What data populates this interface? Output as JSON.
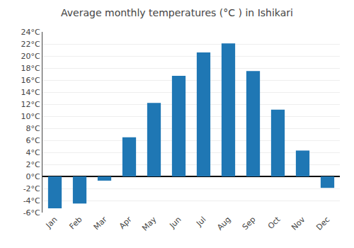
{
  "chart_data": {
    "type": "bar",
    "title": "Average monthly temperatures (°C ) in Ishikari",
    "categories": [
      "Jan",
      "Feb",
      "Mar",
      "Apr",
      "May",
      "Jun",
      "Jul",
      "Aug",
      "Sep",
      "Oct",
      "Nov",
      "Dec"
    ],
    "values": [
      -5.3,
      -4.5,
      -0.7,
      6.5,
      12.2,
      16.7,
      20.6,
      22.1,
      17.5,
      11.1,
      4.3,
      -1.9
    ],
    "ylim": [
      -6,
      24
    ],
    "yticks": [
      {
        "value": -6,
        "label": "-6°C"
      },
      {
        "value": -4,
        "label": "-4°C"
      },
      {
        "value": -2,
        "label": "-2°C"
      },
      {
        "value": 0,
        "label": "0°C"
      },
      {
        "value": 2,
        "label": "2°C"
      },
      {
        "value": 4,
        "label": "4°C"
      },
      {
        "value": 6,
        "label": "6°C"
      },
      {
        "value": 8,
        "label": "8°C"
      },
      {
        "value": 10,
        "label": "10°C"
      },
      {
        "value": 12,
        "label": "12°C"
      },
      {
        "value": 14,
        "label": "14°C"
      },
      {
        "value": 16,
        "label": "16°C"
      },
      {
        "value": 18,
        "label": "18°C"
      },
      {
        "value": 20,
        "label": "20°C"
      },
      {
        "value": 22,
        "label": "22°C"
      },
      {
        "value": 24,
        "label": "24°C"
      }
    ],
    "grid": true
  }
}
